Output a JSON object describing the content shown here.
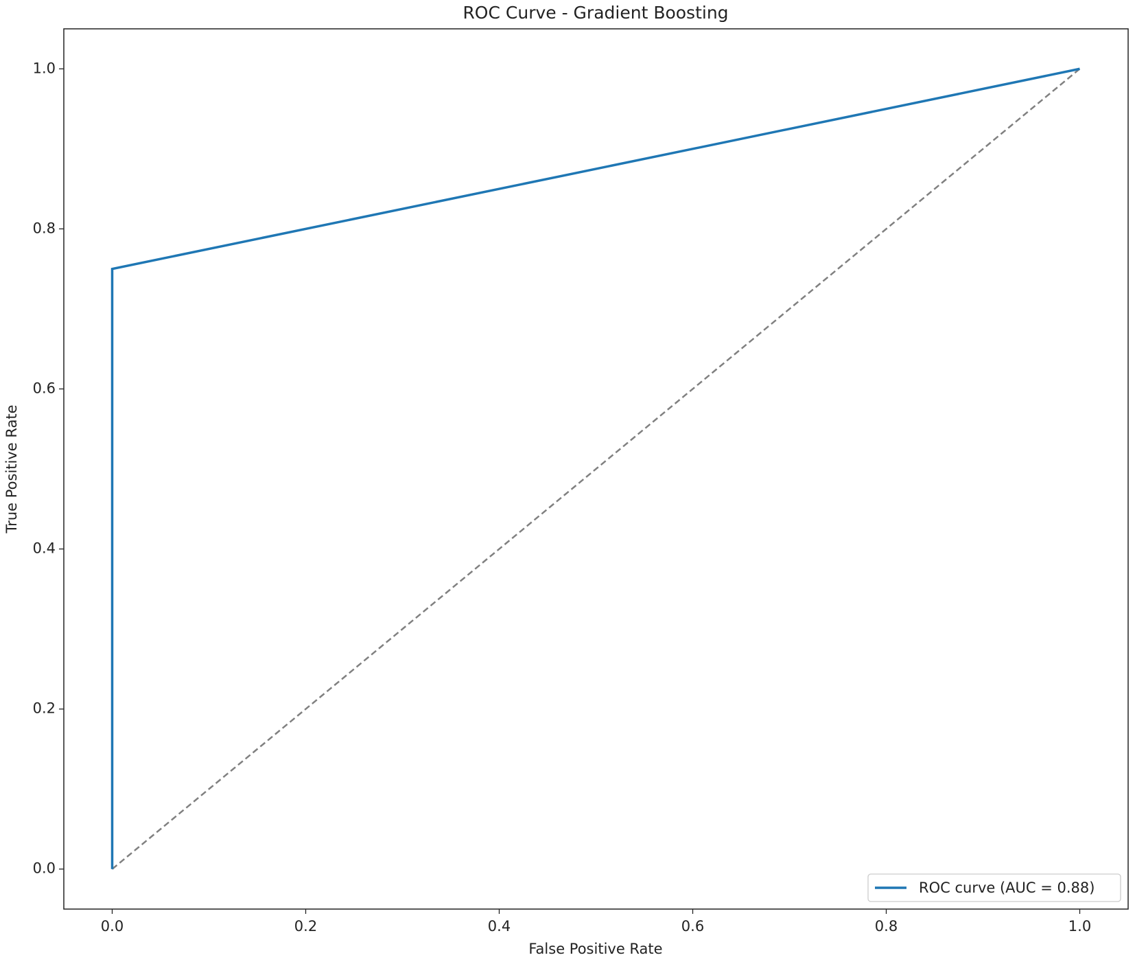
{
  "chart_data": {
    "type": "line",
    "title": "ROC Curve - Gradient Boosting",
    "xlabel": "False Positive Rate",
    "ylabel": "True Positive Rate",
    "series": [
      {
        "name": "ROC curve (AUC = 0.88)",
        "color": "#1f77b4",
        "linestyle": "solid",
        "x": [
          0,
          0,
          1
        ],
        "values": [
          0,
          0.75,
          1
        ]
      },
      {
        "color": "#808080",
        "linestyle": "dashed",
        "x": [
          0,
          1
        ],
        "values": [
          0,
          1
        ]
      }
    ],
    "xlim": [
      -0.05,
      1.05
    ],
    "ylim": [
      -0.05,
      1.05
    ],
    "xticks": [
      {
        "value": 0,
        "label": "0.0"
      },
      0.2,
      0.4,
      0.6,
      0.8,
      {
        "value": 1,
        "label": "1.0"
      }
    ],
    "yticks": [
      {
        "value": 0,
        "label": "0.0"
      },
      0.2,
      0.4,
      0.6,
      0.8,
      {
        "value": 1,
        "label": "1.0"
      }
    ],
    "grid": false,
    "legend": "lower right"
  }
}
